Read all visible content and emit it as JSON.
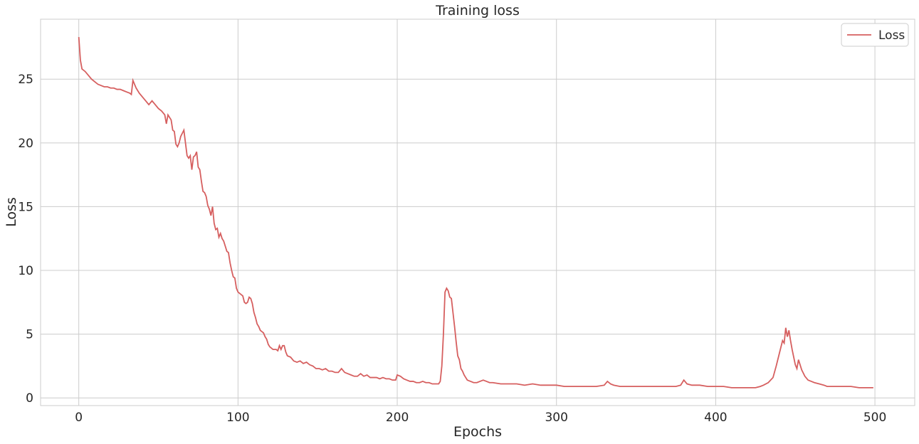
{
  "chart_data": {
    "type": "line",
    "title": "Training loss",
    "xlabel": "Epochs",
    "ylabel": "Loss",
    "xlim": [
      -24,
      525
    ],
    "ylim": [
      -0.6,
      29.7
    ],
    "xticks": [
      0,
      100,
      200,
      300,
      400,
      500
    ],
    "yticks": [
      0,
      5,
      10,
      15,
      20,
      25
    ],
    "grid": true,
    "legend_position": "top-right",
    "series": [
      {
        "name": "Loss",
        "color": "#d65f5f",
        "points": [
          [
            0,
            28.3
          ],
          [
            1,
            26.5
          ],
          [
            2,
            25.8
          ],
          [
            4,
            25.6
          ],
          [
            6,
            25.3
          ],
          [
            8,
            25.0
          ],
          [
            10,
            24.8
          ],
          [
            12,
            24.6
          ],
          [
            14,
            24.5
          ],
          [
            16,
            24.4
          ],
          [
            18,
            24.4
          ],
          [
            20,
            24.3
          ],
          [
            22,
            24.3
          ],
          [
            24,
            24.2
          ],
          [
            26,
            24.2
          ],
          [
            28,
            24.1
          ],
          [
            30,
            24.0
          ],
          [
            32,
            23.9
          ],
          [
            33,
            23.8
          ],
          [
            34,
            24.9
          ],
          [
            36,
            24.3
          ],
          [
            38,
            23.9
          ],
          [
            40,
            23.6
          ],
          [
            42,
            23.3
          ],
          [
            44,
            23.0
          ],
          [
            46,
            23.3
          ],
          [
            48,
            23.0
          ],
          [
            50,
            22.7
          ],
          [
            52,
            22.5
          ],
          [
            54,
            22.2
          ],
          [
            55,
            21.5
          ],
          [
            56,
            22.2
          ],
          [
            58,
            21.8
          ],
          [
            59,
            21.0
          ],
          [
            60,
            20.9
          ],
          [
            61,
            19.9
          ],
          [
            62,
            19.7
          ],
          [
            63,
            20.0
          ],
          [
            64,
            20.5
          ],
          [
            66,
            21.0
          ],
          [
            67,
            20.0
          ],
          [
            68,
            19.0
          ],
          [
            69,
            18.8
          ],
          [
            70,
            19.0
          ],
          [
            71,
            17.9
          ],
          [
            72,
            18.9
          ],
          [
            73,
            19.0
          ],
          [
            74,
            19.3
          ],
          [
            75,
            18.1
          ],
          [
            76,
            17.9
          ],
          [
            77,
            17.0
          ],
          [
            78,
            16.2
          ],
          [
            79,
            16.1
          ],
          [
            80,
            15.8
          ],
          [
            81,
            15.1
          ],
          [
            82,
            14.8
          ],
          [
            83,
            14.3
          ],
          [
            84,
            15.0
          ],
          [
            85,
            13.7
          ],
          [
            86,
            13.2
          ],
          [
            87,
            13.3
          ],
          [
            88,
            12.6
          ],
          [
            89,
            12.9
          ],
          [
            90,
            12.5
          ],
          [
            91,
            12.3
          ],
          [
            92,
            11.9
          ],
          [
            93,
            11.5
          ],
          [
            94,
            11.4
          ],
          [
            95,
            10.6
          ],
          [
            96,
            10.0
          ],
          [
            97,
            9.5
          ],
          [
            98,
            9.4
          ],
          [
            99,
            8.6
          ],
          [
            100,
            8.3
          ],
          [
            102,
            8.1
          ],
          [
            103,
            8.0
          ],
          [
            104,
            7.5
          ],
          [
            105,
            7.4
          ],
          [
            106,
            7.5
          ],
          [
            107,
            7.9
          ],
          [
            108,
            7.8
          ],
          [
            109,
            7.4
          ],
          [
            110,
            6.7
          ],
          [
            111,
            6.3
          ],
          [
            112,
            5.8
          ],
          [
            113,
            5.6
          ],
          [
            114,
            5.3
          ],
          [
            115,
            5.2
          ],
          [
            116,
            5.1
          ],
          [
            117,
            4.8
          ],
          [
            118,
            4.6
          ],
          [
            119,
            4.2
          ],
          [
            120,
            4.0
          ],
          [
            121,
            3.9
          ],
          [
            122,
            3.8
          ],
          [
            124,
            3.8
          ],
          [
            125,
            3.7
          ],
          [
            126,
            4.1
          ],
          [
            127,
            3.8
          ],
          [
            128,
            4.1
          ],
          [
            129,
            4.1
          ],
          [
            130,
            3.6
          ],
          [
            131,
            3.3
          ],
          [
            133,
            3.2
          ],
          [
            135,
            2.9
          ],
          [
            137,
            2.8
          ],
          [
            139,
            2.9
          ],
          [
            141,
            2.7
          ],
          [
            143,
            2.8
          ],
          [
            145,
            2.6
          ],
          [
            147,
            2.5
          ],
          [
            149,
            2.3
          ],
          [
            151,
            2.3
          ],
          [
            153,
            2.2
          ],
          [
            155,
            2.3
          ],
          [
            157,
            2.1
          ],
          [
            159,
            2.1
          ],
          [
            161,
            2.0
          ],
          [
            163,
            2.0
          ],
          [
            165,
            2.3
          ],
          [
            167,
            2.0
          ],
          [
            169,
            1.9
          ],
          [
            171,
            1.8
          ],
          [
            173,
            1.7
          ],
          [
            175,
            1.7
          ],
          [
            177,
            1.9
          ],
          [
            179,
            1.7
          ],
          [
            181,
            1.8
          ],
          [
            183,
            1.6
          ],
          [
            185,
            1.6
          ],
          [
            187,
            1.6
          ],
          [
            189,
            1.5
          ],
          [
            191,
            1.6
          ],
          [
            193,
            1.5
          ],
          [
            195,
            1.5
          ],
          [
            197,
            1.4
          ],
          [
            199,
            1.4
          ],
          [
            200,
            1.8
          ],
          [
            202,
            1.7
          ],
          [
            204,
            1.5
          ],
          [
            206,
            1.4
          ],
          [
            208,
            1.3
          ],
          [
            210,
            1.3
          ],
          [
            212,
            1.2
          ],
          [
            214,
            1.2
          ],
          [
            216,
            1.3
          ],
          [
            218,
            1.2
          ],
          [
            220,
            1.2
          ],
          [
            222,
            1.1
          ],
          [
            224,
            1.1
          ],
          [
            226,
            1.1
          ],
          [
            227,
            1.3
          ],
          [
            228,
            2.5
          ],
          [
            229,
            5.0
          ],
          [
            230,
            8.3
          ],
          [
            231,
            8.6
          ],
          [
            232,
            8.4
          ],
          [
            233,
            7.9
          ],
          [
            234,
            7.8
          ],
          [
            235,
            6.7
          ],
          [
            236,
            5.6
          ],
          [
            237,
            4.4
          ],
          [
            238,
            3.3
          ],
          [
            239,
            3.0
          ],
          [
            240,
            2.3
          ],
          [
            241,
            2.1
          ],
          [
            242,
            1.8
          ],
          [
            243,
            1.6
          ],
          [
            244,
            1.4
          ],
          [
            246,
            1.3
          ],
          [
            248,
            1.2
          ],
          [
            250,
            1.2
          ],
          [
            252,
            1.3
          ],
          [
            254,
            1.4
          ],
          [
            256,
            1.3
          ],
          [
            258,
            1.2
          ],
          [
            260,
            1.2
          ],
          [
            265,
            1.1
          ],
          [
            270,
            1.1
          ],
          [
            275,
            1.1
          ],
          [
            280,
            1.0
          ],
          [
            285,
            1.1
          ],
          [
            290,
            1.0
          ],
          [
            295,
            1.0
          ],
          [
            300,
            1.0
          ],
          [
            305,
            0.9
          ],
          [
            310,
            0.9
          ],
          [
            315,
            0.9
          ],
          [
            320,
            0.9
          ],
          [
            325,
            0.9
          ],
          [
            330,
            1.0
          ],
          [
            332,
            1.3
          ],
          [
            334,
            1.1
          ],
          [
            336,
            1.0
          ],
          [
            340,
            0.9
          ],
          [
            345,
            0.9
          ],
          [
            350,
            0.9
          ],
          [
            355,
            0.9
          ],
          [
            360,
            0.9
          ],
          [
            365,
            0.9
          ],
          [
            370,
            0.9
          ],
          [
            375,
            0.9
          ],
          [
            378,
            1.0
          ],
          [
            380,
            1.4
          ],
          [
            382,
            1.1
          ],
          [
            385,
            1.0
          ],
          [
            390,
            1.0
          ],
          [
            395,
            0.9
          ],
          [
            400,
            0.9
          ],
          [
            405,
            0.9
          ],
          [
            410,
            0.8
          ],
          [
            415,
            0.8
          ],
          [
            420,
            0.8
          ],
          [
            425,
            0.8
          ],
          [
            428,
            0.9
          ],
          [
            430,
            1.0
          ],
          [
            433,
            1.2
          ],
          [
            436,
            1.6
          ],
          [
            438,
            2.5
          ],
          [
            440,
            3.5
          ],
          [
            442,
            4.5
          ],
          [
            443,
            4.3
          ],
          [
            444,
            5.5
          ],
          [
            445,
            4.8
          ],
          [
            446,
            5.3
          ],
          [
            447,
            4.5
          ],
          [
            448,
            3.8
          ],
          [
            449,
            3.2
          ],
          [
            450,
            2.6
          ],
          [
            451,
            2.3
          ],
          [
            452,
            3.0
          ],
          [
            453,
            2.6
          ],
          [
            454,
            2.2
          ],
          [
            456,
            1.7
          ],
          [
            458,
            1.4
          ],
          [
            460,
            1.3
          ],
          [
            462,
            1.2
          ],
          [
            465,
            1.1
          ],
          [
            468,
            1.0
          ],
          [
            470,
            0.9
          ],
          [
            475,
            0.9
          ],
          [
            480,
            0.9
          ],
          [
            485,
            0.9
          ],
          [
            490,
            0.8
          ],
          [
            495,
            0.8
          ],
          [
            499,
            0.8
          ]
        ]
      }
    ]
  }
}
